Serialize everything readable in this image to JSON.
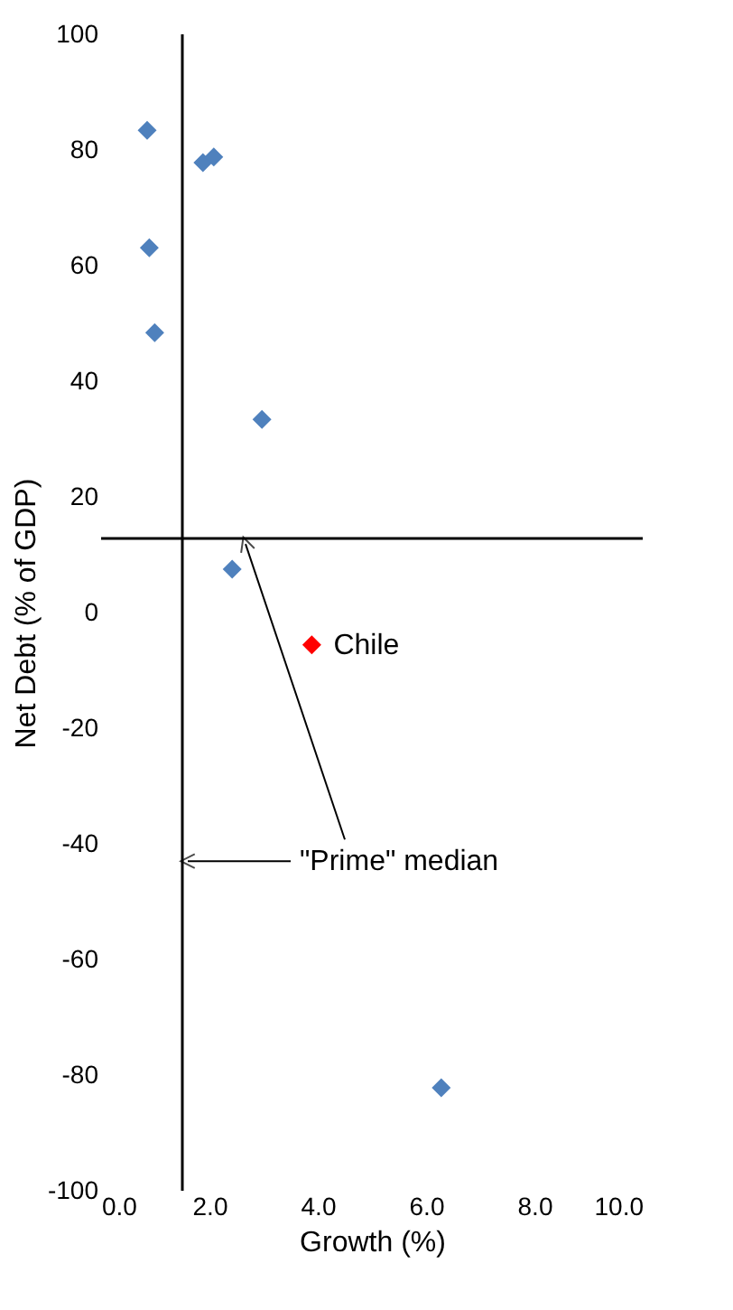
{
  "chart_data": {
    "type": "scatter",
    "xlabel": "Growth (%)",
    "ylabel": "Net Debt (% of GDP)",
    "series": [
      {
        "color": "#4f81bd",
        "x": [
          0.85,
          1.88,
          2.08,
          0.89,
          0.99,
          2.97,
          2.42,
          6.28
        ],
        "values": [
          83.4,
          77.8,
          78.8,
          63.1,
          48.4,
          33.4,
          7.5,
          -82.2
        ]
      },
      {
        "name": "Chile",
        "color": "#ff0000",
        "x": [
          3.89
        ],
        "values": [
          -5.6
        ]
      }
    ],
    "xlim": [
      0,
      10
    ],
    "ylim": [
      -100,
      100
    ],
    "xticks": [
      {
        "value": 0,
        "label": "0.0"
      },
      {
        "value": 2,
        "label": "2.0"
      },
      {
        "value": 4,
        "label": "4.0"
      },
      {
        "value": 6,
        "label": "6.0"
      },
      {
        "value": 8,
        "label": "8.0"
      },
      {
        "value": 10,
        "label": "10.0"
      }
    ],
    "yticks": [
      -100,
      -80,
      -60,
      -40,
      -20,
      0,
      20,
      40,
      60,
      80,
      100
    ],
    "ref_lines": [
      {
        "axis": "x",
        "value": 1.5,
        "color": "#000000"
      },
      {
        "axis": "y",
        "value": 12.8,
        "color": "#000000"
      }
    ],
    "annotations": [
      {
        "text": "\"Prime\" median",
        "x": 1.5,
        "y": -43
      }
    ],
    "marker": "diamond",
    "grid": false
  }
}
